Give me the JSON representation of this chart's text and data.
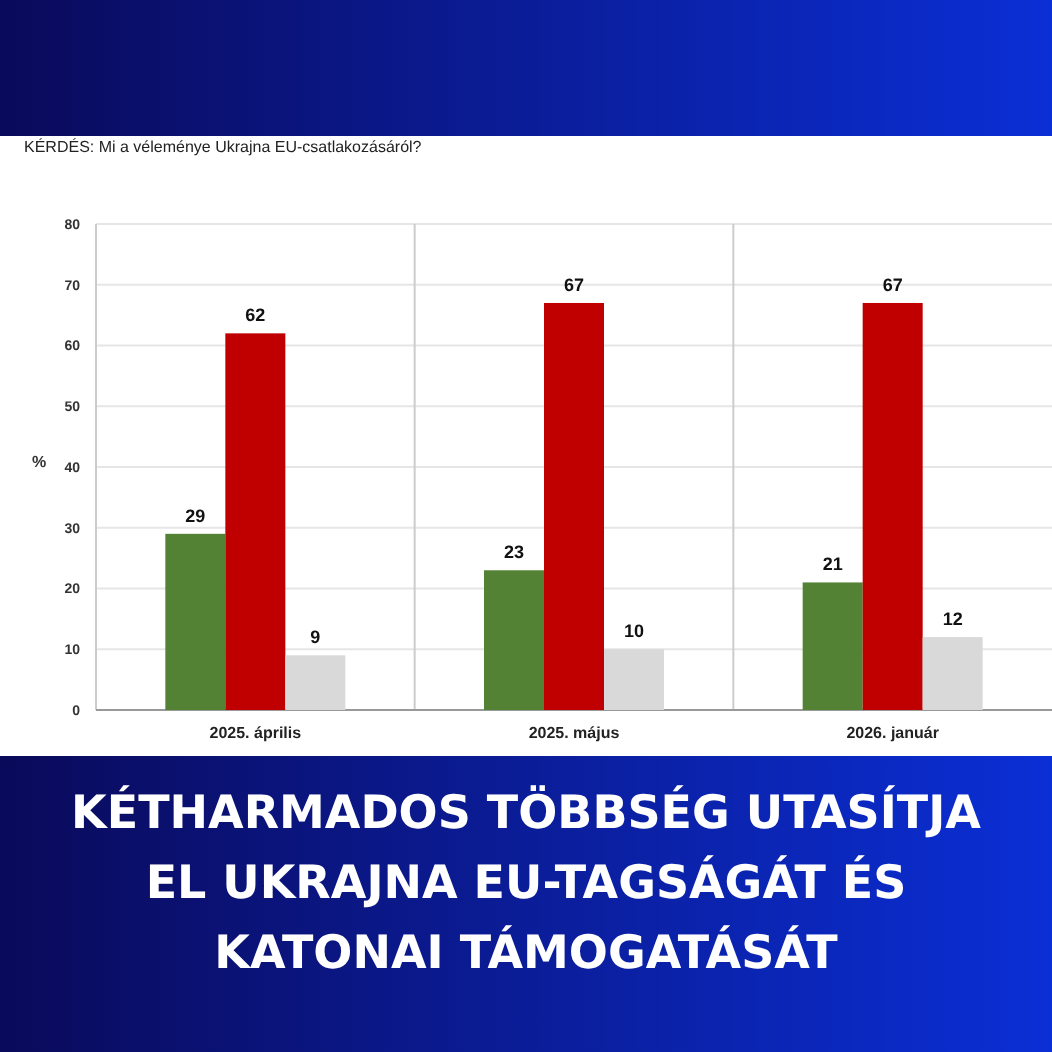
{
  "chart_data": {
    "type": "bar",
    "title": "KÉTHARMADOS TÖBBSÉG UTASÍTJA EL UKRAJNA EU-TAGSÁGÁT ÉS KATONAI TÁMOGATÁSÁT",
    "subtitle": "KÉRDÉS: Mi a véleménye Ukrajna EU-csatlakozásáról?",
    "ylabel": "%",
    "categories": [
      "2025. április",
      "2025. május",
      "2026. január"
    ],
    "series": [
      {
        "color": "#548235",
        "values": [
          29,
          23,
          21
        ]
      },
      {
        "color": "#c00000",
        "values": [
          62,
          67,
          67
        ]
      },
      {
        "color": "#d9d9d9",
        "values": [
          9,
          10,
          12
        ]
      }
    ],
    "ylim": [
      0,
      80
    ],
    "yticks": [
      0,
      10,
      20,
      30,
      40,
      50,
      60,
      70,
      80
    ],
    "grid": "y",
    "data_labels": true
  }
}
